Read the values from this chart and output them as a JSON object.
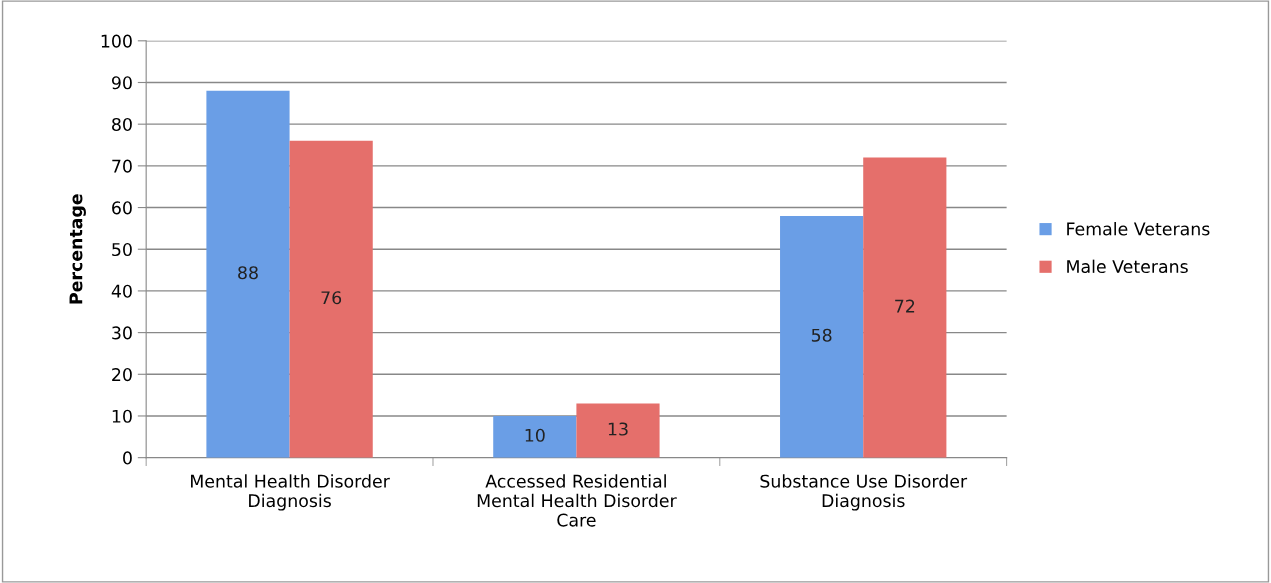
{
  "chart_data": {
    "type": "bar",
    "ylabel": "Percentage",
    "categories": [
      "Mental Health Disorder\nDiagnosis",
      "Accessed Residential\nMental Health Disorder\nCare",
      "Substance Use Disorder\nDiagnosis"
    ],
    "series": [
      {
        "name": "Female Veterans",
        "color": "#6a9ee6",
        "values": [
          88,
          10,
          58
        ]
      },
      {
        "name": "Male Veterans",
        "color": "#e56f6b",
        "values": [
          76,
          13,
          72
        ]
      }
    ],
    "ylim": [
      0,
      100
    ],
    "yticks": [
      0,
      10,
      20,
      30,
      40,
      50,
      60,
      70,
      80,
      90,
      100
    ],
    "grid": "y",
    "legend": "right",
    "data_labels": true
  }
}
